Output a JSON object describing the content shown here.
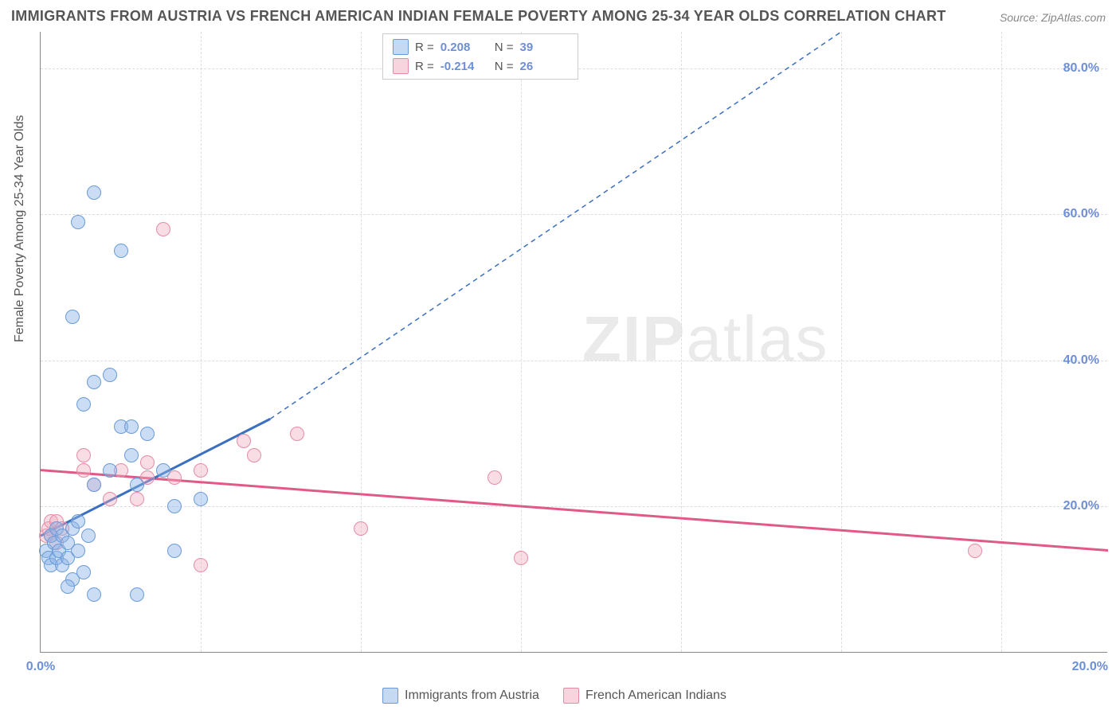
{
  "title": "IMMIGRANTS FROM AUSTRIA VS FRENCH AMERICAN INDIAN FEMALE POVERTY AMONG 25-34 YEAR OLDS CORRELATION CHART",
  "source": "Source: ZipAtlas.com",
  "ylabel": "Female Poverty Among 25-34 Year Olds",
  "watermark_a": "ZIP",
  "watermark_b": "atlas",
  "chart": {
    "type": "scatter",
    "background_color": "#ffffff",
    "grid_color": "#dddddd",
    "axis_color": "#888888",
    "tick_color": "#6c8fd6",
    "tick_fontsize": 16,
    "xlim": [
      0,
      20
    ],
    "ylim": [
      0,
      85
    ],
    "xticks": [
      {
        "v": 0.0,
        "label": "0.0%"
      },
      {
        "v": 20.0,
        "label": "20.0%"
      }
    ],
    "yticks": [
      {
        "v": 20.0,
        "label": "20.0%"
      },
      {
        "v": 40.0,
        "label": "40.0%"
      },
      {
        "v": 60.0,
        "label": "60.0%"
      },
      {
        "v": 80.0,
        "label": "80.0%"
      }
    ],
    "xgrid": [
      3.0,
      6.0,
      9.0,
      12.0,
      15.0,
      18.0
    ],
    "series_blue": {
      "label": "Immigrants from Austria",
      "marker_fill": "rgba(140,180,230,0.45)",
      "marker_stroke": "#6a9bd8",
      "marker_size": 18,
      "R": "0.208",
      "N": "39",
      "trend": {
        "x1": 0.0,
        "y1": 16.0,
        "x2": 4.3,
        "y2": 32.0,
        "color": "#3b6fc0",
        "width": 3,
        "dash_ext_to_x": 15.0,
        "dash_ext_to_y": 85.0
      },
      "points": [
        [
          0.1,
          14
        ],
        [
          0.15,
          13
        ],
        [
          0.2,
          16
        ],
        [
          0.2,
          12
        ],
        [
          0.25,
          15
        ],
        [
          0.3,
          13
        ],
        [
          0.3,
          17
        ],
        [
          0.35,
          14
        ],
        [
          0.4,
          16
        ],
        [
          0.4,
          12
        ],
        [
          0.5,
          15
        ],
        [
          0.5,
          13
        ],
        [
          0.6,
          10
        ],
        [
          0.6,
          17
        ],
        [
          0.7,
          14
        ],
        [
          0.7,
          18
        ],
        [
          0.8,
          11
        ],
        [
          0.9,
          16
        ],
        [
          0.8,
          34
        ],
        [
          0.6,
          46
        ],
        [
          0.7,
          59
        ],
        [
          1.0,
          63
        ],
        [
          1.0,
          37
        ],
        [
          1.3,
          38
        ],
        [
          1.0,
          23
        ],
        [
          1.3,
          25
        ],
        [
          1.5,
          55
        ],
        [
          1.5,
          31
        ],
        [
          1.7,
          27
        ],
        [
          1.7,
          31
        ],
        [
          1.8,
          23
        ],
        [
          2.0,
          30
        ],
        [
          2.3,
          25
        ],
        [
          2.5,
          20
        ],
        [
          2.5,
          14
        ],
        [
          3.0,
          21
        ],
        [
          1.0,
          8
        ],
        [
          1.8,
          8
        ],
        [
          0.5,
          9
        ]
      ]
    },
    "series_pink": {
      "label": "French American Indians",
      "marker_fill": "rgba(240,170,190,0.4)",
      "marker_stroke": "#e58ba5",
      "marker_size": 18,
      "R": "-0.214",
      "N": "26",
      "trend": {
        "x1": 0.0,
        "y1": 25.0,
        "x2": 20.0,
        "y2": 14.0,
        "color": "#e05a85",
        "width": 3
      },
      "points": [
        [
          0.1,
          16
        ],
        [
          0.15,
          17
        ],
        [
          0.2,
          18
        ],
        [
          0.2,
          16
        ],
        [
          0.3,
          15
        ],
        [
          0.3,
          18
        ],
        [
          0.4,
          17
        ],
        [
          0.8,
          25
        ],
        [
          0.8,
          27
        ],
        [
          1.0,
          23
        ],
        [
          1.3,
          21
        ],
        [
          1.5,
          25
        ],
        [
          1.8,
          21
        ],
        [
          2.0,
          24
        ],
        [
          2.0,
          26
        ],
        [
          2.3,
          58
        ],
        [
          2.5,
          24
        ],
        [
          3.0,
          25
        ],
        [
          3.0,
          12
        ],
        [
          3.8,
          29
        ],
        [
          4.0,
          27
        ],
        [
          4.8,
          30
        ],
        [
          6.0,
          17
        ],
        [
          8.5,
          24
        ],
        [
          9.0,
          13
        ],
        [
          17.5,
          14
        ]
      ]
    }
  },
  "legend_top": {
    "R_label": "R  =",
    "N_label": "N  ="
  }
}
